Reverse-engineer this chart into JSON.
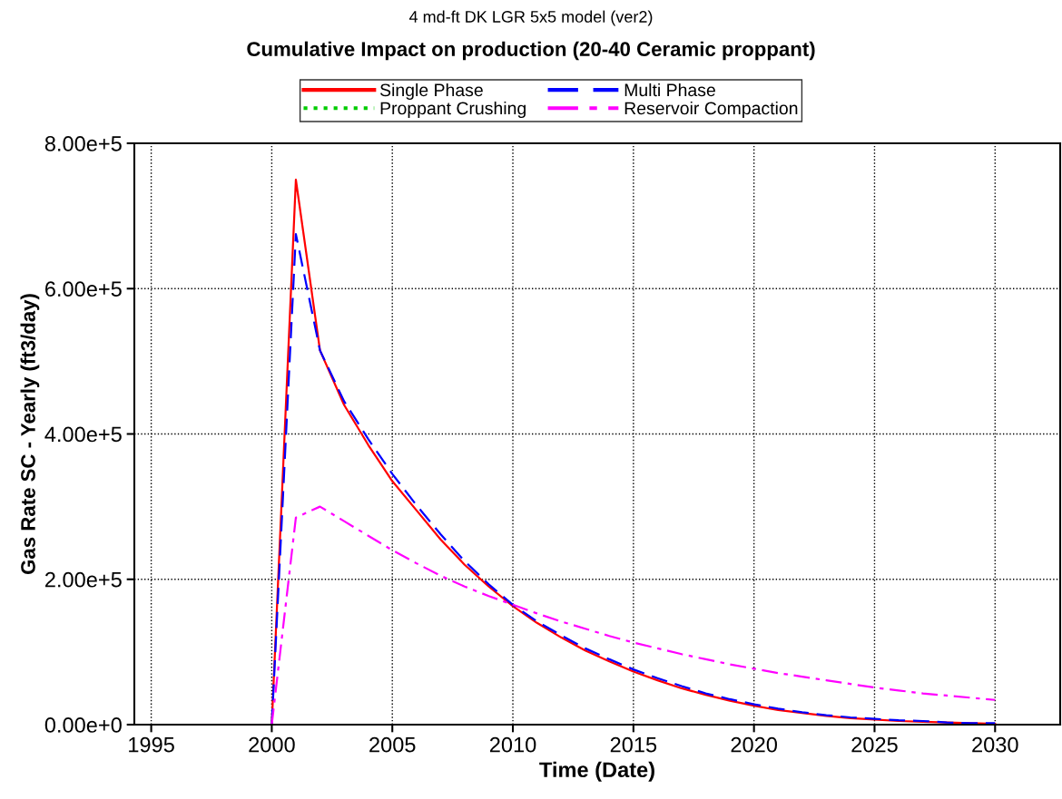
{
  "chart_data": {
    "type": "line",
    "title": "Cumulative Impact on production (20-40 Ceramic proppant)",
    "subtitle": "4 md-ft DK LGR 5x5 model (ver2)",
    "xlabel": "Time (Date)",
    "ylabel": "Gas Rate SC - Yearly (ft3/day)",
    "x": [
      2000,
      2001,
      2002,
      2003,
      2004,
      2005,
      2006,
      2007,
      2008,
      2009,
      2010,
      2011,
      2012,
      2013,
      2014,
      2015,
      2016,
      2017,
      2018,
      2019,
      2020,
      2021,
      2022,
      2023,
      2024,
      2025,
      2026,
      2027,
      2028,
      2029,
      2030
    ],
    "series": [
      {
        "name": "Single Phase",
        "color": "#ff0000",
        "line_style": "solid",
        "values": [
          0,
          750000,
          515000,
          440000,
          385000,
          335000,
          295000,
          255000,
          220000,
          190000,
          163000,
          140000,
          120000,
          102000,
          87000,
          73000,
          61000,
          50000,
          41000,
          33000,
          26000,
          20000,
          16000,
          12000,
          9000,
          7000,
          5000,
          4000,
          3000,
          2000,
          1000
        ]
      },
      {
        "name": "Multi Phase",
        "color": "#0000ff",
        "line_style": "dashed",
        "values": [
          0,
          675000,
          515000,
          445000,
          393000,
          345000,
          302000,
          262000,
          225000,
          193000,
          165000,
          142000,
          123000,
          105000,
          90000,
          76000,
          64000,
          53000,
          43000,
          35000,
          28000,
          22000,
          17000,
          13000,
          10000,
          8000,
          6000,
          5000,
          3000,
          2000,
          2000
        ]
      },
      {
        "name": "Proppant Crushing",
        "color": "#00cc00",
        "line_style": "dotted",
        "values": [
          null,
          null,
          null,
          null,
          null,
          null,
          null,
          null,
          null,
          null,
          null,
          null,
          null,
          null,
          null,
          null,
          null,
          null,
          null,
          null,
          null,
          null,
          null,
          null,
          null,
          null,
          null,
          null,
          null,
          null,
          null
        ]
      },
      {
        "name": "Reservoir Compaction",
        "color": "#ff00ff",
        "line_style": "dashdot",
        "values": [
          0,
          285000,
          300000,
          280000,
          260000,
          240000,
          222000,
          205000,
          190000,
          177000,
          165000,
          153000,
          142000,
          132000,
          122000,
          113000,
          105000,
          97000,
          90000,
          83000,
          77000,
          71000,
          66000,
          61000,
          56000,
          51000,
          47000,
          43000,
          40000,
          37000,
          34000
        ]
      }
    ],
    "xlim": [
      1994.3,
      2032.7
    ],
    "xticks": [
      1995,
      2000,
      2005,
      2010,
      2015,
      2020,
      2025,
      2030
    ],
    "ylim": [
      0,
      800000
    ],
    "yticks": [
      {
        "value": 0,
        "label": "0.00e+0"
      },
      {
        "value": 200000,
        "label": "2.00e+5"
      },
      {
        "value": 400000,
        "label": "4.00e+5"
      },
      {
        "value": 600000,
        "label": "6.00e+5"
      },
      {
        "value": 800000,
        "label": "8.00e+5"
      }
    ],
    "grid": true,
    "legend": "top",
    "marker": "none"
  }
}
